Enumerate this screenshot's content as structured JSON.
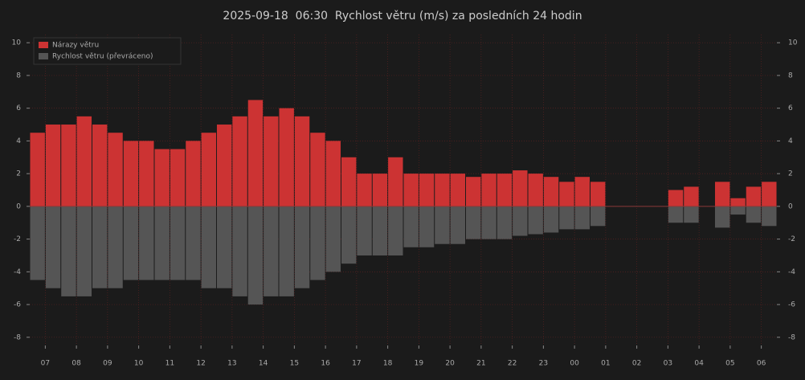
{
  "chart_data": {
    "type": "bar",
    "title": "2025-09-18  06:30  Rychlost větru (m/s) za posledních 24 hodin",
    "x": [
      0.25,
      0.75,
      1.25,
      1.75,
      2.25,
      2.75,
      3.25,
      3.75,
      4.25,
      4.75,
      5.25,
      5.75,
      6.25,
      6.75,
      7.25,
      7.75,
      8.25,
      8.75,
      9.25,
      9.75,
      10.25,
      10.75,
      11.25,
      11.75,
      12.25,
      12.75,
      13.25,
      13.75,
      14.25,
      14.75,
      15.25,
      15.75,
      16.25,
      16.75,
      17.25,
      17.75,
      18.25,
      18.75,
      19.25,
      19.75,
      20.25,
      20.75,
      21.25,
      21.75,
      22.25,
      22.75,
      23.25,
      23.75
    ],
    "series": [
      {
        "name": "Nárazy větru",
        "color": "#cc3333",
        "values": [
          4.5,
          5,
          5,
          5.5,
          5,
          4.5,
          4,
          4,
          3.5,
          3.5,
          4,
          4.5,
          5,
          5.5,
          6.5,
          5.5,
          6,
          5.5,
          4.5,
          4,
          3,
          2,
          2,
          3,
          2,
          2,
          2,
          2,
          1.8,
          2,
          2,
          2.2,
          2,
          1.8,
          1.5,
          1.8,
          1.5,
          0,
          0,
          0,
          0,
          1,
          1.2,
          0,
          1.5,
          0.5,
          1.2,
          1.5
        ]
      },
      {
        "name": "Rychlost větru (převráceno)",
        "color": "#555555",
        "values": [
          -4.5,
          -5,
          -5.5,
          -5.5,
          -5,
          -5,
          -4.5,
          -4.5,
          -4.5,
          -4.5,
          -4.5,
          -5,
          -5,
          -5.5,
          -6,
          -5.5,
          -5.5,
          -5,
          -4.5,
          -4,
          -3.5,
          -3,
          -3,
          -3,
          -2.5,
          -2.5,
          -2.3,
          -2.3,
          -2,
          -2,
          -2,
          -1.8,
          -1.7,
          -1.6,
          -1.4,
          -1.4,
          -1.2,
          0,
          0,
          0,
          0,
          -1,
          -1,
          0,
          -1.3,
          -0.5,
          -1,
          -1.2
        ]
      }
    ],
    "xlim": [
      0,
      24
    ],
    "xticks": [
      {
        "value": 0.5,
        "label": "07"
      },
      {
        "value": 1.5,
        "label": "08"
      },
      {
        "value": 2.5,
        "label": "09"
      },
      {
        "value": 3.5,
        "label": "10"
      },
      {
        "value": 4.5,
        "label": "11"
      },
      {
        "value": 5.5,
        "label": "12"
      },
      {
        "value": 6.5,
        "label": "13"
      },
      {
        "value": 7.5,
        "label": "14"
      },
      {
        "value": 8.5,
        "label": "15"
      },
      {
        "value": 9.5,
        "label": "16"
      },
      {
        "value": 10.5,
        "label": "17"
      },
      {
        "value": 11.5,
        "label": "18"
      },
      {
        "value": 12.5,
        "label": "19"
      },
      {
        "value": 13.5,
        "label": "20"
      },
      {
        "value": 14.5,
        "label": "21"
      },
      {
        "value": 15.5,
        "label": "22"
      },
      {
        "value": 16.5,
        "label": "23"
      },
      {
        "value": 17.5,
        "label": "00"
      },
      {
        "value": 18.5,
        "label": "01"
      },
      {
        "value": 19.5,
        "label": "02"
      },
      {
        "value": 20.5,
        "label": "03"
      },
      {
        "value": 21.5,
        "label": "04"
      },
      {
        "value": 22.5,
        "label": "05"
      },
      {
        "value": 23.5,
        "label": "06"
      }
    ],
    "ylim": [
      -8.5,
      10.5
    ],
    "yticks": [
      -8,
      -6,
      -4,
      -2,
      0,
      2,
      4,
      6,
      8,
      10
    ],
    "grid": true,
    "legend": "upper left"
  }
}
